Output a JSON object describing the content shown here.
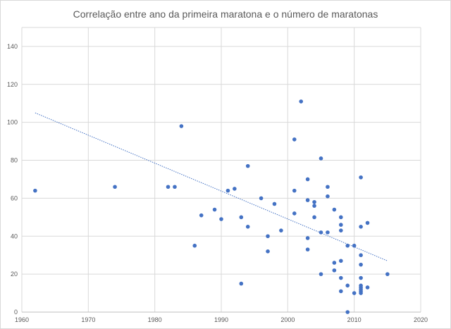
{
  "chart_data": {
    "type": "scatter",
    "title": "Correlação entre ano da primeira maratona e o número de maratonas",
    "xlabel": "",
    "ylabel": "",
    "xlim": [
      1960,
      2020
    ],
    "ylim": [
      0,
      150
    ],
    "x_ticks": [
      1960,
      1970,
      1980,
      1990,
      2000,
      2010,
      2020
    ],
    "y_ticks": [
      0,
      20,
      40,
      60,
      80,
      100,
      120,
      140
    ],
    "grid": true,
    "legend": "none",
    "colors": {
      "points": "#4472c4",
      "trendline": "#4472c4",
      "grid": "#d9d9d9"
    },
    "trendline": {
      "type": "linear",
      "x": [
        1962,
        2015
      ],
      "y": [
        105,
        27
      ]
    },
    "points": [
      {
        "x": 1962,
        "y": 64
      },
      {
        "x": 1974,
        "y": 66
      },
      {
        "x": 1982,
        "y": 66
      },
      {
        "x": 1983,
        "y": 66
      },
      {
        "x": 1984,
        "y": 98
      },
      {
        "x": 1986,
        "y": 35
      },
      {
        "x": 1987,
        "y": 51
      },
      {
        "x": 1989,
        "y": 54
      },
      {
        "x": 1990,
        "y": 49
      },
      {
        "x": 1991,
        "y": 64
      },
      {
        "x": 1992,
        "y": 65
      },
      {
        "x": 1993,
        "y": 50
      },
      {
        "x": 1993,
        "y": 15
      },
      {
        "x": 1994,
        "y": 77
      },
      {
        "x": 1994,
        "y": 45
      },
      {
        "x": 1996,
        "y": 60
      },
      {
        "x": 1997,
        "y": 40
      },
      {
        "x": 1997,
        "y": 32
      },
      {
        "x": 1998,
        "y": 57
      },
      {
        "x": 1999,
        "y": 43
      },
      {
        "x": 2001,
        "y": 91
      },
      {
        "x": 2001,
        "y": 64
      },
      {
        "x": 2001,
        "y": 52
      },
      {
        "x": 2002,
        "y": 111
      },
      {
        "x": 2003,
        "y": 70
      },
      {
        "x": 2003,
        "y": 59
      },
      {
        "x": 2003,
        "y": 39
      },
      {
        "x": 2003,
        "y": 33
      },
      {
        "x": 2004,
        "y": 58
      },
      {
        "x": 2004,
        "y": 56
      },
      {
        "x": 2004,
        "y": 50
      },
      {
        "x": 2005,
        "y": 81
      },
      {
        "x": 2005,
        "y": 42
      },
      {
        "x": 2005,
        "y": 20
      },
      {
        "x": 2006,
        "y": 66
      },
      {
        "x": 2006,
        "y": 61
      },
      {
        "x": 2006,
        "y": 42
      },
      {
        "x": 2007,
        "y": 54
      },
      {
        "x": 2007,
        "y": 26
      },
      {
        "x": 2007,
        "y": 22
      },
      {
        "x": 2008,
        "y": 50
      },
      {
        "x": 2008,
        "y": 46
      },
      {
        "x": 2008,
        "y": 43
      },
      {
        "x": 2008,
        "y": 27
      },
      {
        "x": 2008,
        "y": 18
      },
      {
        "x": 2008,
        "y": 11
      },
      {
        "x": 2009,
        "y": 35
      },
      {
        "x": 2009,
        "y": 14
      },
      {
        "x": 2009,
        "y": 0
      },
      {
        "x": 2010,
        "y": 35
      },
      {
        "x": 2010,
        "y": 10
      },
      {
        "x": 2011,
        "y": 71
      },
      {
        "x": 2011,
        "y": 45
      },
      {
        "x": 2011,
        "y": 30
      },
      {
        "x": 2011,
        "y": 25
      },
      {
        "x": 2011,
        "y": 18
      },
      {
        "x": 2011,
        "y": 14
      },
      {
        "x": 2011,
        "y": 13
      },
      {
        "x": 2011,
        "y": 12
      },
      {
        "x": 2011,
        "y": 11
      },
      {
        "x": 2011,
        "y": 10
      },
      {
        "x": 2012,
        "y": 47
      },
      {
        "x": 2012,
        "y": 13
      },
      {
        "x": 2015,
        "y": 20
      }
    ]
  }
}
